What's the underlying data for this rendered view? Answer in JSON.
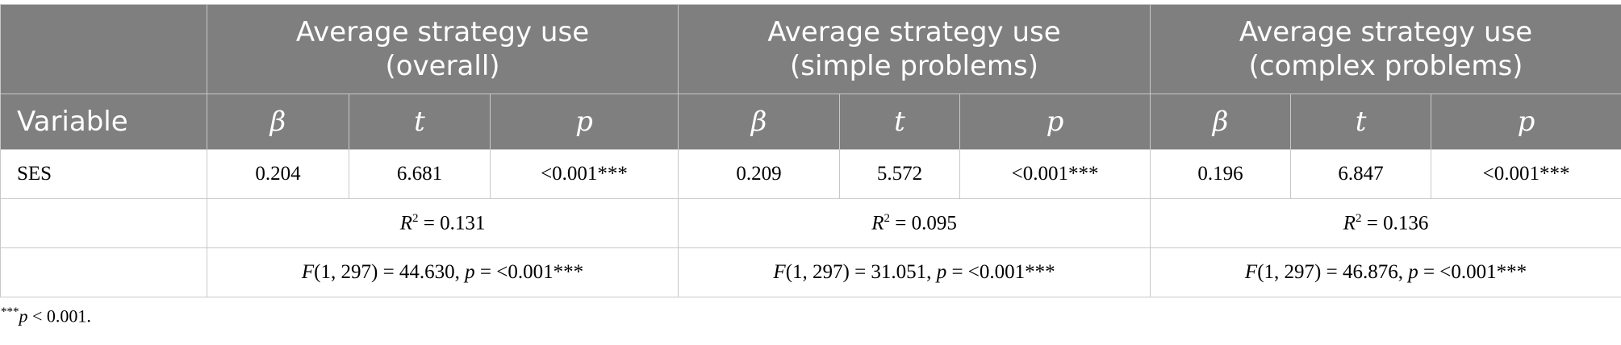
{
  "table": {
    "header": {
      "groups": [
        "Average strategy use\n(overall)",
        "Average strategy use\n(simple problems)",
        "Average strategy use\n(complex problems)"
      ],
      "variable": "Variable",
      "stats": [
        "β",
        "t",
        "p"
      ]
    },
    "rows": [
      {
        "label": "SES",
        "cells": [
          "0.204",
          "6.681",
          "<0.001***",
          "0.209",
          "5.572",
          "<0.001***",
          "0.196",
          "6.847",
          "<0.001***"
        ]
      }
    ],
    "r2": [
      {
        "symbol": "R",
        "sup": "2",
        "text": " = 0.131"
      },
      {
        "symbol": "R",
        "sup": "2",
        "text": " = 0.095"
      },
      {
        "symbol": "R",
        "sup": "2",
        "text": " = 0.136"
      }
    ],
    "f": [
      {
        "symbol": "F",
        "text": "(1, 297) = 44.630, ",
        "p": "p",
        "rest": " = <0.001***"
      },
      {
        "symbol": "F",
        "text": "(1, 297) = 31.051, ",
        "p": "p",
        "rest": " = <0.001***"
      },
      {
        "symbol": "F",
        "text": "(1, 297) = 46.876, ",
        "p": "p",
        "rest": " = <0.001***"
      }
    ]
  },
  "footnote": {
    "stars": "***",
    "p": "p",
    "text": " < 0.001."
  }
}
